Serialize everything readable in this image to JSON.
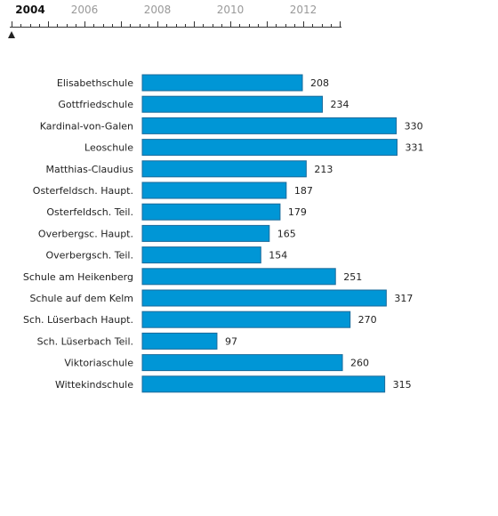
{
  "timeline": {
    "years": [
      "2004",
      "2006",
      "2008",
      "2010",
      "2012"
    ],
    "selected": "2004"
  },
  "chart_data": {
    "type": "bar",
    "orientation": "horizontal",
    "categories": [
      "Elisabethschule",
      "Gottfriedschule",
      "Kardinal-von-Galen",
      "Leoschule",
      "Matthias-Claudius",
      "Osterfeldsch. Haupt.",
      "Osterfeldsch. Teil.",
      "Overbergsc. Haupt.",
      "Overbergsch. Teil.",
      "Schule am Heikenberg",
      "Schule auf dem Kelm",
      "Sch. Lüserbach Haupt.",
      "Sch. Lüserbach Teil.",
      "Viktoriaschule",
      "Wittekindschule"
    ],
    "values": [
      208,
      234,
      330,
      331,
      213,
      187,
      179,
      165,
      154,
      251,
      317,
      270,
      97,
      260,
      315
    ],
    "bar_color": "#0096d6",
    "bar_stroke": "#1c6b9b",
    "grid": false,
    "legend": false
  }
}
